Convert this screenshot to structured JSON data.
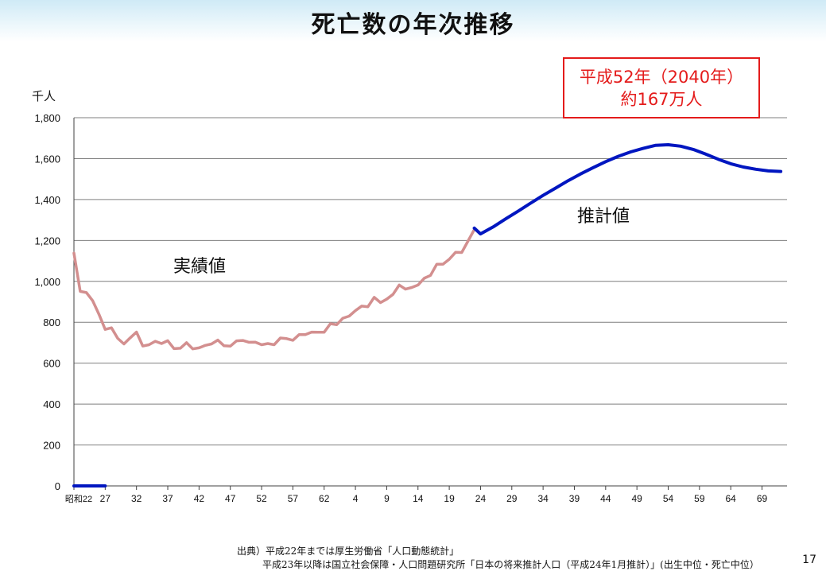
{
  "title": "死亡数の年次推移",
  "callout": {
    "line1": "平成52年（2040年）",
    "line2": "約167万人"
  },
  "source": {
    "line1": "出典）平成22年までは厚生労働省「人口動態統計」",
    "line2": "平成23年以降は国立社会保障・人口問題研究所「日本の将来推計人口（平成24年1月推計）」(出生中位・死亡中位）"
  },
  "page_number": "17",
  "chart_data": {
    "type": "line",
    "ylabel": "千人",
    "ylim": [
      0,
      1800
    ],
    "yticks": [
      0,
      200,
      400,
      600,
      800,
      1000,
      1200,
      1400,
      1600,
      1800
    ],
    "ytick_labels": [
      "0",
      "200",
      "400",
      "600",
      "800",
      "1,000",
      "1,200",
      "1,400",
      "1,600",
      "1,800"
    ],
    "x_tick_labels": [
      "昭和22",
      "27",
      "32",
      "37",
      "42",
      "47",
      "52",
      "57",
      "62",
      "4",
      "9",
      "14",
      "19",
      "24",
      "29",
      "34",
      "39",
      "44",
      "49",
      "54",
      "59",
      "64",
      "69"
    ],
    "x_start_year": 1947,
    "x_end_year": 2060,
    "grid": true,
    "colors": {
      "actual": "#d38f8f",
      "projected": "#0016c0",
      "grid": "#7f7f7f"
    },
    "annotations": {
      "actual": "実績値",
      "projected": "推計値"
    },
    "series": [
      {
        "name": "実績値",
        "x": [
          1947,
          1948,
          1949,
          1950,
          1951,
          1952,
          1953,
          1954,
          1955,
          1956,
          1957,
          1958,
          1959,
          1960,
          1961,
          1962,
          1963,
          1964,
          1965,
          1966,
          1967,
          1968,
          1969,
          1970,
          1971,
          1972,
          1973,
          1974,
          1975,
          1976,
          1977,
          1978,
          1979,
          1980,
          1981,
          1982,
          1983,
          1984,
          1985,
          1986,
          1987,
          1988,
          1989,
          1990,
          1991,
          1992,
          1993,
          1994,
          1995,
          1996,
          1997,
          1998,
          1999,
          2000,
          2001,
          2002,
          2003,
          2004,
          2005,
          2006,
          2007,
          2008,
          2009,
          2010,
          2011
        ],
        "y": [
          1138,
          951,
          945,
          905,
          839,
          765,
          773,
          721,
          694,
          724,
          752,
          684,
          690,
          707,
          696,
          710,
          671,
          673,
          700,
          670,
          675,
          687,
          694,
          713,
          685,
          683,
          709,
          711,
          702,
          703,
          690,
          696,
          690,
          723,
          720,
          712,
          740,
          740,
          752,
          751,
          751,
          793,
          788,
          820,
          830,
          857,
          879,
          876,
          922,
          896,
          913,
          936,
          982,
          962,
          970,
          982,
          1015,
          1029,
          1084,
          1084,
          1108,
          1142,
          1141,
          1197,
          1253
        ]
      },
      {
        "name": "推計値",
        "x": [
          2011,
          2012,
          2014,
          2016,
          2018,
          2020,
          2022,
          2024,
          2026,
          2028,
          2030,
          2032,
          2034,
          2036,
          2038,
          2040,
          2042,
          2044,
          2046,
          2048,
          2050,
          2052,
          2054,
          2056,
          2058,
          2060
        ],
        "y": [
          1260,
          1232,
          1266,
          1305,
          1343,
          1382,
          1420,
          1456,
          1492,
          1525,
          1556,
          1585,
          1611,
          1633,
          1650,
          1665,
          1668,
          1661,
          1645,
          1622,
          1597,
          1575,
          1559,
          1548,
          1540,
          1537
        ]
      },
      {
        "name": "",
        "x": [
          1947,
          1948,
          1949,
          1950,
          1951,
          1952
        ],
        "y": [
          0,
          0,
          0,
          0,
          0,
          0
        ]
      }
    ]
  }
}
